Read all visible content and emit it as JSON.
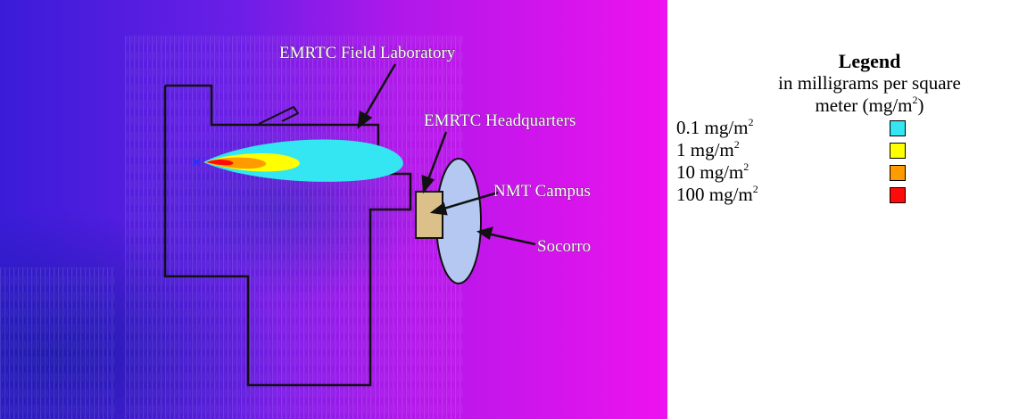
{
  "map": {
    "labels": {
      "field_lab": "EMRTC Field Laboratory",
      "headquarters": "EMRTC Headquarters",
      "campus": "NMT Campus",
      "town": "Socorro"
    },
    "colors": {
      "terrain_west": "#3a1cd8",
      "terrain_east": "#ee12ee",
      "boundary": "#111111",
      "headquarters_fill": "#dcc08a",
      "socorro_fill": "#b4c8f2"
    }
  },
  "legend": {
    "title": "Legend",
    "subtitle_line1": "in milligrams per square",
    "subtitle_line2_prefix": "meter (mg/m",
    "subtitle_line2_sup": "2",
    "subtitle_line2_suffix": ")",
    "items": [
      {
        "value": "0.1 mg/m",
        "sup": "2",
        "color": "#33e6f2"
      },
      {
        "value": "1 mg/m",
        "sup": "2",
        "color": "#ffff00"
      },
      {
        "value": "10 mg/m",
        "sup": "2",
        "color": "#ff9a00"
      },
      {
        "value": "100 mg/m",
        "sup": "2",
        "color": "#ff0a0a"
      }
    ]
  }
}
